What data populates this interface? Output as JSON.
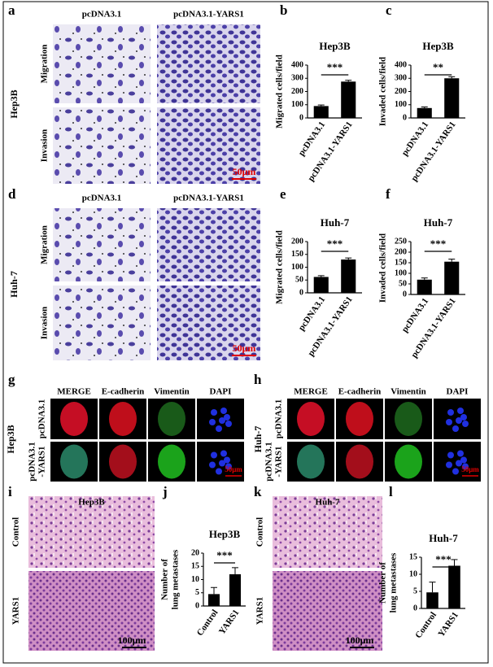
{
  "panel_labels": [
    "a",
    "b",
    "c",
    "d",
    "e",
    "f",
    "g",
    "h",
    "i",
    "j",
    "k",
    "l"
  ],
  "transwell": [
    {
      "cell_line": "Hep3B",
      "columns": [
        "pcDNA3.1",
        "pcDNA3.1-YARS1"
      ],
      "rows": [
        "Migration",
        "Invasion"
      ],
      "scale_bar": "50μm"
    },
    {
      "cell_line": "Huh-7",
      "columns": [
        "pcDNA3.1",
        "pcDNA3.1-YARS1"
      ],
      "rows": [
        "Migration",
        "Invasion"
      ],
      "scale_bar": "50μm"
    }
  ],
  "immunofluorescence": [
    {
      "cell_line": "Hep3B",
      "columns": [
        "MERGE",
        "E-cadherin",
        "Vimentin",
        "DAPI"
      ],
      "rows": [
        [
          "pcDNA3.1"
        ],
        [
          "pcDNA3.1",
          "-YARS1"
        ]
      ],
      "scale_bar": "50μm"
    },
    {
      "cell_line": "Huh-7",
      "columns": [
        "MERGE",
        "E-cadherin",
        "Vimentin",
        "DAPI"
      ],
      "rows": [
        [
          "pcDNA3.1"
        ],
        [
          "pcDNA3.1",
          "-YARS1"
        ]
      ],
      "scale_bar": "50μm"
    }
  ],
  "histology": [
    {
      "title": "Hep3B",
      "rows": [
        "Control",
        "YARS1"
      ],
      "scale_bar": "100μm"
    },
    {
      "title": "Huh-7",
      "rows": [
        "Control",
        "YARS1"
      ],
      "scale_bar": "100μm"
    }
  ],
  "chart_data": [
    {
      "type": "bar",
      "title": "Hep3B",
      "y_label": "Migrated cells/field",
      "categories": [
        "pcDNA3.1",
        "pcDNA3.1-YARS1"
      ],
      "values": [
        90,
        275
      ],
      "errors": [
        8,
        10
      ],
      "color": "#000000",
      "ylim": [
        0,
        400
      ],
      "yticks": [
        0,
        100,
        200,
        300,
        400
      ],
      "significance": "***"
    },
    {
      "type": "bar",
      "title": "Hep3B",
      "y_label": "Invaded cells/field",
      "categories": [
        "pcDNA3.1",
        "pcDNA3.1-YARS1"
      ],
      "values": [
        75,
        300
      ],
      "errors": [
        8,
        12
      ],
      "color": "#000000",
      "ylim": [
        0,
        400
      ],
      "yticks": [
        0,
        100,
        200,
        300,
        400
      ],
      "significance": "**"
    },
    {
      "type": "bar",
      "title": "Huh-7",
      "y_label": "Migrated cells/field",
      "categories": [
        "pcDNA3.1",
        "pcDNA3.1-YARS1"
      ],
      "values": [
        62,
        130
      ],
      "errors": [
        5,
        6
      ],
      "color": "#000000",
      "ylim": [
        0,
        200
      ],
      "yticks": [
        0,
        50,
        100,
        150,
        200
      ],
      "significance": "***"
    },
    {
      "type": "bar",
      "title": "Huh-7",
      "y_label": "Invaded cells/field",
      "categories": [
        "pcDNA3.1",
        "pcDNA3.1-YARS1"
      ],
      "values": [
        70,
        155
      ],
      "errors": [
        8,
        12
      ],
      "color": "#000000",
      "ylim": [
        0,
        250
      ],
      "yticks": [
        0,
        50,
        100,
        150,
        200,
        250
      ],
      "significance": "***"
    },
    {
      "type": "bar",
      "title": "Hep3B",
      "y_label": [
        "Number of",
        "lung metastases"
      ],
      "categories": [
        "Control",
        "YARS1"
      ],
      "values": [
        4.5,
        12
      ],
      "errors": [
        2.5,
        2.5
      ],
      "color": "#000000",
      "ylim": [
        0,
        20
      ],
      "yticks": [
        0,
        5,
        10,
        15,
        20
      ],
      "significance": "***"
    },
    {
      "type": "bar",
      "title": "Huh-7",
      "y_label": [
        "Number of",
        "lung metastases"
      ],
      "categories": [
        "Control",
        "YARS1"
      ],
      "values": [
        4.7,
        12.5
      ],
      "errors": [
        3,
        1.8
      ],
      "color": "#000000",
      "ylim": [
        0,
        15
      ],
      "yticks": [
        0,
        5,
        10,
        15
      ],
      "significance": "***"
    }
  ]
}
